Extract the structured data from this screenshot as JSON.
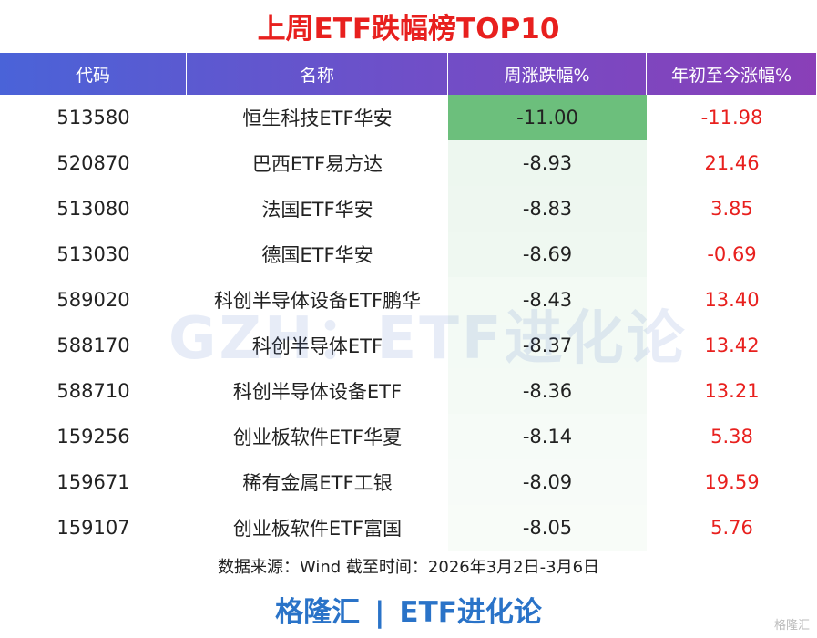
{
  "header": {
    "title": "上周ETF跌幅榜TOP10"
  },
  "table": {
    "columns": [
      "代码",
      "名称",
      "周涨跌幅%",
      "年初至今涨幅%"
    ],
    "rows": [
      [
        "513580",
        "恒生科技ETF华安",
        "-11.00",
        "-11.98"
      ],
      [
        "520870",
        "巴西ETF易方达",
        "-8.93",
        "21.46"
      ],
      [
        "513080",
        "法国ETF华安",
        "-8.83",
        "3.85"
      ],
      [
        "513030",
        "德国ETF华安",
        "-8.69",
        "-0.69"
      ],
      [
        "589020",
        "科创半导体设备ETF鹏华",
        "-8.43",
        "13.40"
      ],
      [
        "588170",
        "科创半导体ETF",
        "-8.37",
        "13.42"
      ],
      [
        "588710",
        "科创半导体设备ETF",
        "-8.36",
        "13.21"
      ],
      [
        "159256",
        "创业板软件ETF华夏",
        "-8.14",
        "5.38"
      ],
      [
        "159671",
        "稀有金属ETF工银",
        "-8.09",
        "19.59"
      ],
      [
        "159107",
        "创业板软件ETF富国",
        "-8.05",
        "5.76"
      ]
    ]
  },
  "footnote": "数据来源：Wind 截至时间：2026年3月2日-3月6日",
  "watermark": "GZH：ETF进化论",
  "footer": {
    "brand": "格隆汇",
    "separator": "|",
    "account": "ETF进化论"
  },
  "corner_logo": "格隆汇"
}
